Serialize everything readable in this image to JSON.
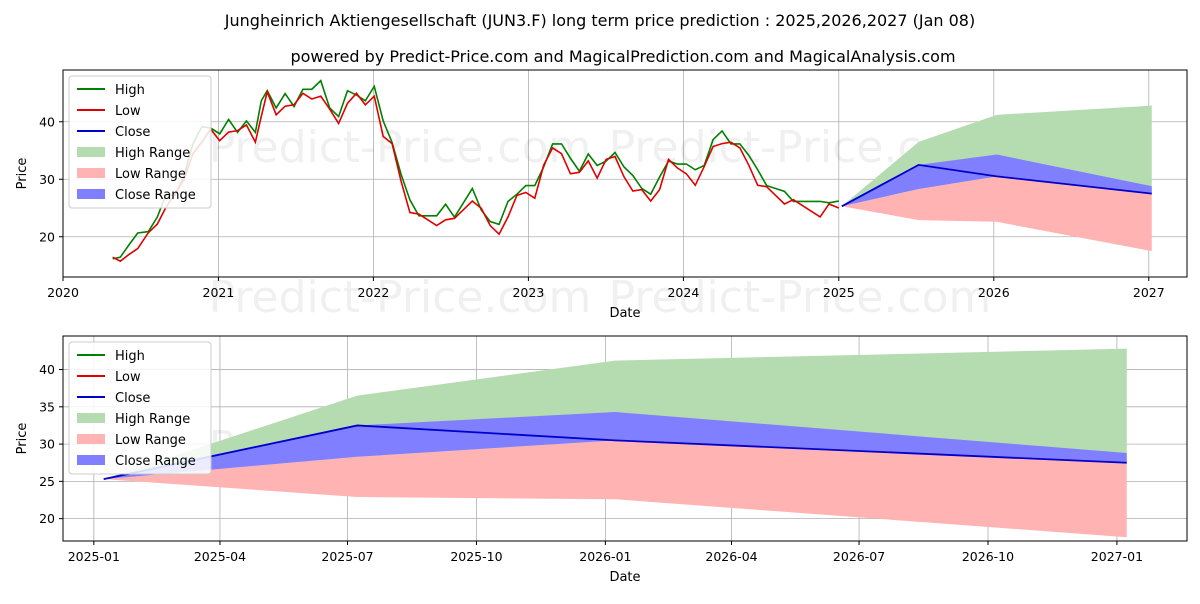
{
  "title_line1": "Jungheinrich Aktiengesellschaft (JUN3.F) long term price prediction : 2025,2026,2027 (Jan 08)",
  "title_line2": "powered by Predict-Price.com and MagicalPrediction.com and MagicalAnalysis.com",
  "watermark": "Predict-Price.com",
  "colors": {
    "high": "#008000",
    "low": "#e00000",
    "close": "#0000cc",
    "high_range": "#b5dbb0",
    "low_range": "#ffb3b3",
    "close_range": "#7f7fff",
    "grid": "#b0b0b0"
  },
  "chart_data": [
    {
      "type": "line",
      "xlabel": "Date",
      "ylabel": "Price",
      "xlim": [
        "2020-01-01",
        "2027-04-01"
      ],
      "ylim": [
        13,
        49
      ],
      "x_ticks": [
        "2020",
        "2021",
        "2022",
        "2023",
        "2024",
        "2025",
        "2026",
        "2027"
      ],
      "y_ticks": [
        20,
        30,
        40
      ],
      "grid": true,
      "legend_position": "upper-left",
      "legend": [
        "High",
        "Low",
        "Close",
        "High Range",
        "Low Range",
        "Close Range"
      ],
      "history": {
        "dates": [
          "2020-04-27",
          "2020-05-15",
          "2020-06-05",
          "2020-06-25",
          "2020-07-20",
          "2020-08-10",
          "2020-08-31",
          "2020-09-21",
          "2020-10-12",
          "2020-11-02",
          "2020-11-23",
          "2020-12-14",
          "2021-01-04",
          "2021-01-25",
          "2021-02-15",
          "2021-03-08",
          "2021-03-29",
          "2021-04-12",
          "2021-04-26",
          "2021-05-17",
          "2021-06-07",
          "2021-06-28",
          "2021-07-19",
          "2021-08-09",
          "2021-08-30",
          "2021-09-20",
          "2021-10-11",
          "2021-11-01",
          "2021-11-22",
          "2021-12-13",
          "2022-01-03",
          "2022-01-24",
          "2022-02-14",
          "2022-03-07",
          "2022-03-28",
          "2022-04-18",
          "2022-05-09",
          "2022-05-30",
          "2022-06-20",
          "2022-07-11",
          "2022-08-01",
          "2022-08-22",
          "2022-09-12",
          "2022-10-03",
          "2022-10-24",
          "2022-11-14",
          "2022-12-05",
          "2022-12-26",
          "2023-01-16",
          "2023-02-06",
          "2023-02-27",
          "2023-03-20",
          "2023-04-10",
          "2023-05-01",
          "2023-05-22",
          "2023-06-12",
          "2023-07-03",
          "2023-07-24",
          "2023-08-14",
          "2023-09-04",
          "2023-09-25",
          "2023-10-16",
          "2023-11-06",
          "2023-11-27",
          "2023-12-18",
          "2024-01-08",
          "2024-01-29",
          "2024-02-19",
          "2024-03-11",
          "2024-04-01",
          "2024-04-22",
          "2024-05-13",
          "2024-06-03",
          "2024-06-24",
          "2024-07-15",
          "2024-08-05",
          "2024-08-26",
          "2024-09-16",
          "2024-10-07",
          "2024-10-28",
          "2024-11-18",
          "2024-12-09",
          "2025-01-01"
        ],
        "close": [
          16.0,
          15.8,
          17.5,
          19.0,
          20.5,
          22.5,
          26.0,
          27.0,
          30.0,
          35.0,
          37.5,
          38.5,
          37.0,
          39.0,
          38.0,
          39.5,
          37.0,
          42.0,
          45.0,
          41.5,
          43.5,
          42.5,
          45.0,
          44.5,
          45.5,
          42.0,
          40.0,
          44.0,
          44.5,
          43.0,
          45.0,
          38.5,
          36.0,
          30.0,
          25.0,
          23.5,
          23.0,
          22.5,
          24.0,
          23.0,
          25.0,
          27.0,
          24.5,
          22.0,
          21.0,
          24.5,
          27.0,
          28.0,
          27.5,
          32.0,
          35.5,
          35.0,
          32.0,
          31.0,
          33.5,
          31.0,
          33.0,
          34.0,
          31.0,
          29.0,
          28.0,
          26.5,
          29.0,
          33.0,
          32.0,
          31.5,
          30.0,
          32.0,
          36.0,
          37.0,
          36.0,
          35.5,
          33.0,
          30.0,
          28.5,
          27.5,
          26.5,
          26.0,
          25.5,
          25.0,
          24.5,
          25.5,
          25.3
        ]
      },
      "forecast": {
        "dates": [
          "2025-01-08",
          "2025-07-08",
          "2026-01-08",
          "2027-01-08"
        ],
        "close": [
          25.3,
          32.5,
          30.5,
          27.5
        ],
        "high_range_upper": [
          25.3,
          36.5,
          41.2,
          42.8
        ],
        "low_range_lower": [
          25.3,
          22.9,
          22.6,
          17.5
        ],
        "close_range_upper": [
          25.3,
          32.5,
          34.3,
          28.8
        ],
        "close_range_lower": [
          25.3,
          28.3,
          30.5,
          27.5
        ]
      }
    },
    {
      "type": "line",
      "xlabel": "Date",
      "ylabel": "Price",
      "xlim": [
        "2024-12-10",
        "2027-02-20"
      ],
      "ylim": [
        17,
        44.5
      ],
      "x_ticks": [
        "2025-01",
        "2025-04",
        "2025-07",
        "2025-10",
        "2026-01",
        "2026-04",
        "2026-07",
        "2026-10",
        "2027-01"
      ],
      "y_ticks": [
        20,
        25,
        30,
        35,
        40
      ],
      "grid": true,
      "legend_position": "upper-left",
      "legend": [
        "High",
        "Low",
        "Close",
        "High Range",
        "Low Range",
        "Close Range"
      ]
    }
  ]
}
